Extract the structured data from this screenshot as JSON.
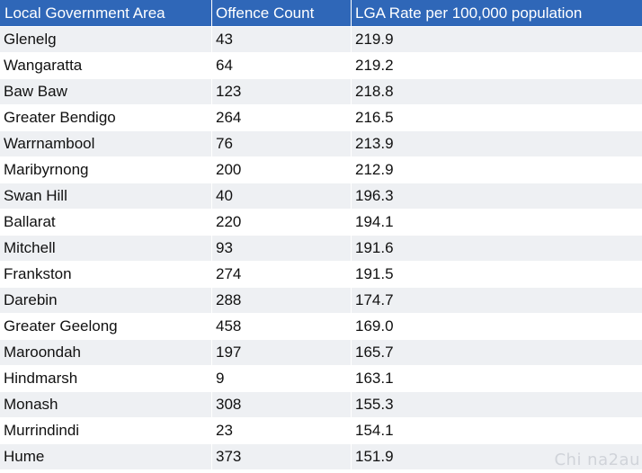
{
  "table": {
    "columns": [
      "Local Government Area",
      "Offence Count",
      "LGA Rate per 100,000 population"
    ],
    "rows": [
      [
        "Glenelg",
        "43",
        "219.9"
      ],
      [
        "Wangaratta",
        "64",
        "219.2"
      ],
      [
        "Baw Baw",
        "123",
        "218.8"
      ],
      [
        "Greater Bendigo",
        "264",
        "216.5"
      ],
      [
        "Warrnambool",
        "76",
        "213.9"
      ],
      [
        "Maribyrnong",
        "200",
        "212.9"
      ],
      [
        "Swan Hill",
        "40",
        "196.3"
      ],
      [
        "Ballarat",
        "220",
        "194.1"
      ],
      [
        "Mitchell",
        "93",
        "191.6"
      ],
      [
        "Frankston",
        "274",
        "191.5"
      ],
      [
        "Darebin",
        "288",
        "174.7"
      ],
      [
        "Greater Geelong",
        "458",
        "169.0"
      ],
      [
        "Maroondah",
        "197",
        "165.7"
      ],
      [
        "Hindmarsh",
        "9",
        "163.1"
      ],
      [
        "Monash",
        "308",
        "155.3"
      ],
      [
        "Murrindindi",
        "23",
        "154.1"
      ],
      [
        "Hume",
        "373",
        "151.9"
      ]
    ]
  },
  "colors": {
    "header_bg": "#2f67b8",
    "header_text": "#ffffff",
    "stripe_row": "#eef0f3"
  },
  "watermark": "Chi na2au"
}
